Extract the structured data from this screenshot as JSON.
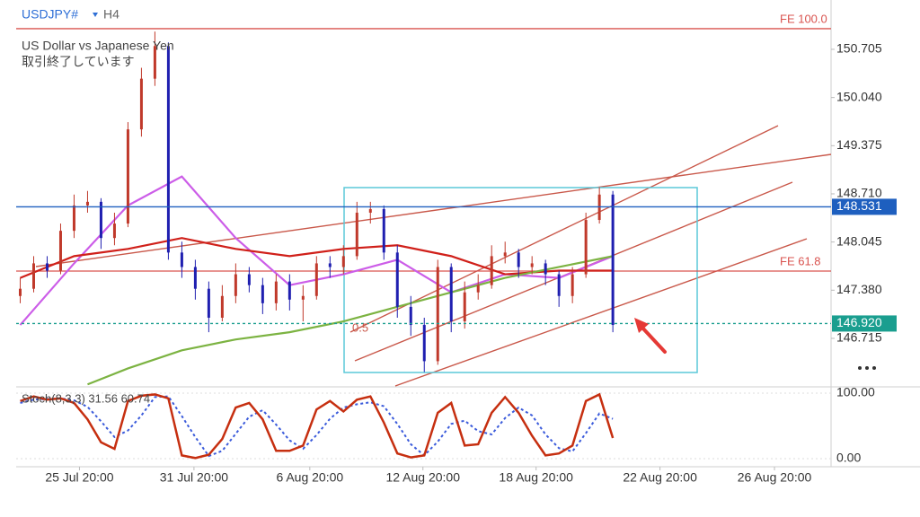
{
  "header": {
    "symbol": "USDJPY#",
    "timeframe": "H4",
    "description": "US Dollar vs Japanese Yen",
    "status": "取引終了しています"
  },
  "chart_data": [
    {
      "type": "candlestick",
      "xlim": [
        -0.3,
        60.2
      ],
      "xticks": [
        {
          "value": 4.4,
          "label": "25 Jul 20:00"
        },
        {
          "value": 12.9,
          "label": "31 Jul 20:00"
        },
        {
          "value": 21.5,
          "label": "6 Aug 20:00"
        },
        {
          "value": 29.9,
          "label": "12 Aug 20:00"
        },
        {
          "value": 38.3,
          "label": "18 Aug 20:00"
        },
        {
          "value": 47.5,
          "label": "22 Aug 20:00"
        },
        {
          "value": 56.0,
          "label": "26 Aug 20:00"
        }
      ],
      "ylim": [
        146.058,
        151.386
      ],
      "yticks": [
        150.705,
        {
          "value": 150.04,
          "label": "150.040"
        },
        149.375,
        {
          "value": 148.71,
          "label": "148.710"
        },
        148.045,
        {
          "value": 147.38,
          "label": "147.380"
        },
        146.715
      ],
      "up_color": "#c0392b",
      "down_color": "#1f1fb0",
      "open": [
        147.3,
        147.4,
        147.75,
        147.65,
        148.2,
        148.55,
        148.6,
        148.1,
        148.3,
        149.6,
        150.3,
        150.75,
        147.9,
        147.7,
        147.4,
        147.0,
        147.3,
        147.6,
        147.45,
        147.2,
        147.5,
        147.25,
        147.3,
        147.75,
        147.7,
        147.85,
        148.45,
        148.5,
        147.9,
        147.15,
        146.9,
        146.4,
        147.7,
        146.95,
        147.35,
        147.45,
        147.85,
        147.9,
        147.7,
        147.75,
        147.6,
        147.3,
        147.6,
        148.35,
        148.7
      ],
      "high": [
        147.55,
        147.85,
        147.85,
        148.3,
        148.7,
        148.75,
        148.65,
        148.45,
        149.7,
        150.45,
        150.95,
        150.8,
        148.05,
        147.8,
        147.5,
        147.45,
        147.75,
        147.7,
        147.55,
        147.6,
        147.6,
        147.45,
        147.85,
        147.85,
        148.0,
        148.6,
        148.6,
        148.55,
        148.0,
        147.3,
        147.0,
        147.8,
        147.75,
        147.5,
        147.6,
        148.0,
        148.05,
        147.95,
        147.85,
        147.8,
        147.65,
        147.7,
        148.45,
        148.8,
        148.75
      ],
      "low": [
        147.2,
        147.35,
        147.55,
        147.6,
        148.1,
        148.45,
        147.95,
        148.0,
        148.25,
        149.5,
        150.2,
        147.8,
        147.55,
        147.25,
        146.8,
        146.95,
        147.2,
        147.35,
        147.05,
        147.1,
        147.1,
        146.95,
        147.25,
        147.55,
        147.6,
        147.8,
        148.3,
        147.8,
        147.0,
        146.75,
        146.25,
        146.35,
        146.8,
        146.85,
        147.25,
        147.4,
        147.75,
        147.55,
        147.6,
        147.45,
        147.15,
        147.2,
        147.55,
        148.3,
        146.8
      ],
      "close": [
        147.4,
        147.75,
        147.65,
        148.2,
        148.55,
        148.6,
        148.1,
        148.3,
        149.6,
        150.3,
        150.75,
        147.9,
        147.7,
        147.4,
        147.0,
        147.3,
        147.6,
        147.45,
        147.2,
        147.5,
        147.25,
        147.3,
        147.75,
        147.7,
        147.85,
        148.45,
        148.5,
        147.9,
        147.15,
        146.9,
        146.4,
        147.7,
        146.95,
        147.35,
        147.45,
        147.85,
        147.9,
        147.7,
        147.75,
        147.6,
        147.3,
        147.6,
        148.35,
        148.7,
        146.9
      ],
      "series": [
        {
          "color": "#cc5de8",
          "x": [
            0,
            4,
            8,
            12,
            16,
            20,
            24,
            28,
            32,
            36,
            40,
            44
          ],
          "values": [
            146.9,
            147.75,
            148.55,
            148.95,
            148.1,
            147.45,
            147.6,
            147.8,
            147.35,
            147.6,
            147.55,
            147.85
          ]
        },
        {
          "color": "#d0201a",
          "x": [
            0,
            4,
            8,
            12,
            16,
            20,
            24,
            28,
            32,
            36,
            40,
            44
          ],
          "values": [
            147.55,
            147.85,
            147.95,
            148.1,
            147.95,
            147.85,
            147.95,
            148.0,
            147.85,
            147.6,
            147.65,
            147.65
          ]
        },
        {
          "color": "#7cb342",
          "x": [
            5,
            8,
            12,
            16,
            20,
            24,
            28,
            32,
            36,
            40,
            44
          ],
          "values": [
            146.08,
            146.3,
            146.55,
            146.7,
            146.8,
            146.95,
            147.15,
            147.35,
            147.55,
            147.7,
            147.85
          ]
        }
      ],
      "levels": [
        {
          "value": 150.99,
          "label": "FE 100.0",
          "color": "#d9534f"
        },
        {
          "value": 147.644,
          "label": "FE 61.8",
          "color": "#d9534f"
        }
      ],
      "price_lines": [
        {
          "value": 148.531,
          "color": "#1e5fbf",
          "dashed": false
        },
        {
          "value": 146.92,
          "label": "146.920",
          "color": "#1a9e8f",
          "dashed": true
        }
      ],
      "annotation": "0.5"
    },
    {
      "type": "line",
      "title": "Stoch(8,3,3) 31.56 60.74",
      "ylim": [
        -12.3,
        108.2
      ],
      "yticks": [
        {
          "value": 100,
          "label": "100.00"
        },
        {
          "value": 0,
          "label": "0.00"
        }
      ],
      "series": [
        {
          "color": "#3b5bdb",
          "dashed": true,
          "values": [
            85,
            90,
            91,
            92,
            89,
            79,
            57,
            33,
            43,
            66,
            94,
            95,
            65,
            33,
            4,
            12,
            38,
            64,
            74,
            52,
            28,
            15,
            36,
            61,
            78,
            83,
            86,
            80,
            53,
            22,
            5,
            26,
            53,
            58,
            42,
            37,
            62,
            78,
            66,
            37,
            16,
            11,
            39,
            69,
            60.74
          ]
        },
        {
          "color": "#c62f10",
          "dashed": false,
          "values": [
            88,
            95,
            90,
            92,
            85,
            60,
            25,
            15,
            88,
            96,
            98,
            92,
            5,
            1,
            6,
            30,
            78,
            85,
            60,
            12,
            12,
            20,
            75,
            88,
            72,
            90,
            95,
            55,
            8,
            2,
            5,
            70,
            85,
            20,
            22,
            70,
            94,
            70,
            35,
            5,
            8,
            20,
            88,
            98,
            31.56
          ]
        }
      ]
    }
  ]
}
